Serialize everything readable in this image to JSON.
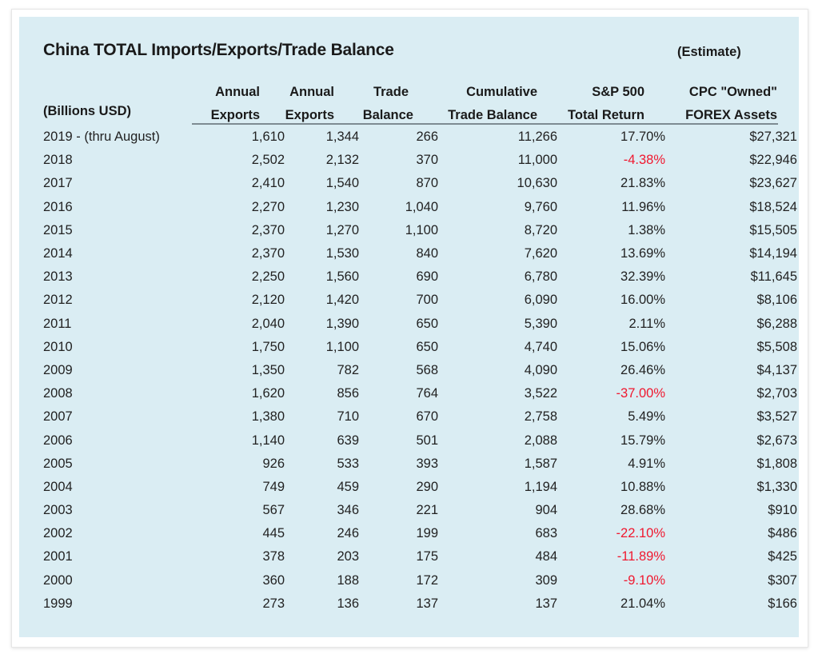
{
  "title": "China TOTAL Imports/Exports/Trade Balance",
  "note": "(Estimate)",
  "units_label": "(Billions USD)",
  "colors": {
    "panel_bg": "#daedf3",
    "negative": "#f0182f",
    "text": "#222222"
  },
  "columns": [
    {
      "line1": "Annual",
      "line2": "Exports"
    },
    {
      "line1": "Annual",
      "line2": "Exports"
    },
    {
      "line1": "Trade",
      "line2": "Balance"
    },
    {
      "line1": "Cumulative",
      "line2": "Trade Balance"
    },
    {
      "line1": "S&P 500",
      "line2": "Total Return"
    },
    {
      "line1": "CPC \"Owned\"",
      "line2": "FOREX Assets"
    }
  ],
  "rows": [
    {
      "year": "2019 - (thru August)",
      "exports_a": "1,610",
      "exports_b": "1,344",
      "balance": "266",
      "cumulative": "11,266",
      "sp500": "17.70%",
      "sp500_negative": false,
      "forex": "$27,321"
    },
    {
      "year": "2018",
      "exports_a": "2,502",
      "exports_b": "2,132",
      "balance": "370",
      "cumulative": "11,000",
      "sp500": "-4.38%",
      "sp500_negative": true,
      "forex": "$22,946"
    },
    {
      "year": "2017",
      "exports_a": "2,410",
      "exports_b": "1,540",
      "balance": "870",
      "cumulative": "10,630",
      "sp500": "21.83%",
      "sp500_negative": false,
      "forex": "$23,627"
    },
    {
      "year": "2016",
      "exports_a": "2,270",
      "exports_b": "1,230",
      "balance": "1,040",
      "cumulative": "9,760",
      "sp500": "11.96%",
      "sp500_negative": false,
      "forex": "$18,524"
    },
    {
      "year": "2015",
      "exports_a": "2,370",
      "exports_b": "1,270",
      "balance": "1,100",
      "cumulative": "8,720",
      "sp500": "1.38%",
      "sp500_negative": false,
      "forex": "$15,505"
    },
    {
      "year": "2014",
      "exports_a": "2,370",
      "exports_b": "1,530",
      "balance": "840",
      "cumulative": "7,620",
      "sp500": "13.69%",
      "sp500_negative": false,
      "forex": "$14,194"
    },
    {
      "year": "2013",
      "exports_a": "2,250",
      "exports_b": "1,560",
      "balance": "690",
      "cumulative": "6,780",
      "sp500": "32.39%",
      "sp500_negative": false,
      "forex": "$11,645"
    },
    {
      "year": "2012",
      "exports_a": "2,120",
      "exports_b": "1,420",
      "balance": "700",
      "cumulative": "6,090",
      "sp500": "16.00%",
      "sp500_negative": false,
      "forex": "$8,106"
    },
    {
      "year": "2011",
      "exports_a": "2,040",
      "exports_b": "1,390",
      "balance": "650",
      "cumulative": "5,390",
      "sp500": "2.11%",
      "sp500_negative": false,
      "forex": "$6,288"
    },
    {
      "year": "2010",
      "exports_a": "1,750",
      "exports_b": "1,100",
      "balance": "650",
      "cumulative": "4,740",
      "sp500": "15.06%",
      "sp500_negative": false,
      "forex": "$5,508"
    },
    {
      "year": "2009",
      "exports_a": "1,350",
      "exports_b": "782",
      "balance": "568",
      "cumulative": "4,090",
      "sp500": "26.46%",
      "sp500_negative": false,
      "forex": "$4,137"
    },
    {
      "year": "2008",
      "exports_a": "1,620",
      "exports_b": "856",
      "balance": "764",
      "cumulative": "3,522",
      "sp500": "-37.00%",
      "sp500_negative": true,
      "forex": "$2,703"
    },
    {
      "year": "2007",
      "exports_a": "1,380",
      "exports_b": "710",
      "balance": "670",
      "cumulative": "2,758",
      "sp500": "5.49%",
      "sp500_negative": false,
      "forex": "$3,527"
    },
    {
      "year": "2006",
      "exports_a": "1,140",
      "exports_b": "639",
      "balance": "501",
      "cumulative": "2,088",
      "sp500": "15.79%",
      "sp500_negative": false,
      "forex": "$2,673"
    },
    {
      "year": "2005",
      "exports_a": "926",
      "exports_b": "533",
      "balance": "393",
      "cumulative": "1,587",
      "sp500": "4.91%",
      "sp500_negative": false,
      "forex": "$1,808"
    },
    {
      "year": "2004",
      "exports_a": "749",
      "exports_b": "459",
      "balance": "290",
      "cumulative": "1,194",
      "sp500": "10.88%",
      "sp500_negative": false,
      "forex": "$1,330"
    },
    {
      "year": "2003",
      "exports_a": "567",
      "exports_b": "346",
      "balance": "221",
      "cumulative": "904",
      "sp500": "28.68%",
      "sp500_negative": false,
      "forex": "$910"
    },
    {
      "year": "2002",
      "exports_a": "445",
      "exports_b": "246",
      "balance": "199",
      "cumulative": "683",
      "sp500": "-22.10%",
      "sp500_negative": true,
      "forex": "$486"
    },
    {
      "year": "2001",
      "exports_a": "378",
      "exports_b": "203",
      "balance": "175",
      "cumulative": "484",
      "sp500": "-11.89%",
      "sp500_negative": true,
      "forex": "$425"
    },
    {
      "year": "2000",
      "exports_a": "360",
      "exports_b": "188",
      "balance": "172",
      "cumulative": "309",
      "sp500": "-9.10%",
      "sp500_negative": true,
      "forex": "$307"
    },
    {
      "year": "1999",
      "exports_a": "273",
      "exports_b": "136",
      "balance": "137",
      "cumulative": "137",
      "sp500": "21.04%",
      "sp500_negative": false,
      "forex": "$166"
    }
  ]
}
